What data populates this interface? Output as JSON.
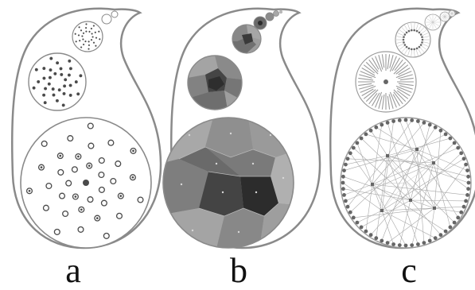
{
  "figure": {
    "panels": [
      {
        "label": "a",
        "style": "spiral-dots"
      },
      {
        "label": "b",
        "style": "voronoi"
      },
      {
        "label": "c",
        "style": "radial-tree"
      }
    ]
  },
  "colors": {
    "outline": "#8a8a8a",
    "dot": "#4a4a4a",
    "dark_cell": "#303030",
    "mid_cell": "#7a7a7a",
    "light_cell": "#b4b4b4",
    "tree_node": "#666666",
    "tree_line": "#a8a8a8"
  }
}
